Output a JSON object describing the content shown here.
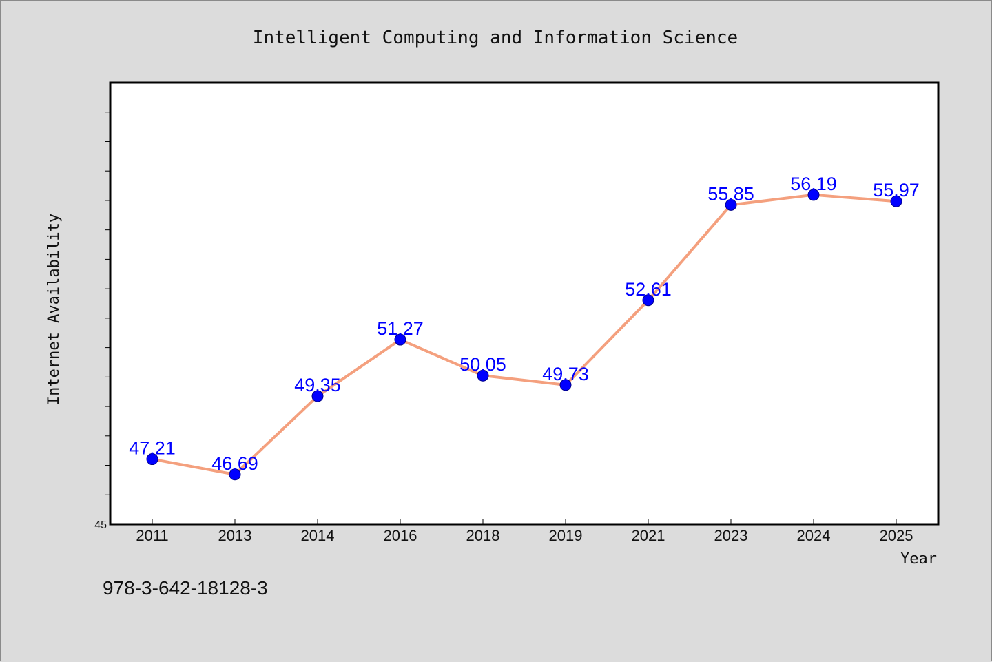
{
  "footer_text": "978-3-642-18128-3",
  "colors": {
    "background": "#dcdcdc",
    "plot_background": "#ffffff",
    "line": "#f4a07e",
    "marker": "#0000ff",
    "data_label": "#0000ff"
  },
  "chart_data": {
    "type": "line",
    "title": "Intelligent Computing and Information Science",
    "xlabel": "Year",
    "ylabel": "Internet Availability",
    "categories": [
      "2011",
      "2013",
      "2014",
      "2016",
      "2018",
      "2019",
      "2021",
      "2023",
      "2024",
      "2025"
    ],
    "series": [
      {
        "values": [
          47.21,
          46.69,
          49.35,
          51.27,
          50.05,
          49.73,
          52.61,
          55.85,
          56.19,
          55.97
        ],
        "labels": [
          "47.21",
          "46.69",
          "49.35",
          "51.27",
          "50.05",
          "49.73",
          "52.61",
          "55.85",
          "56.19",
          "55.97"
        ]
      }
    ],
    "y_min_label": "45",
    "ylim": [
      45,
      60
    ],
    "grid": false,
    "legend": "none"
  }
}
